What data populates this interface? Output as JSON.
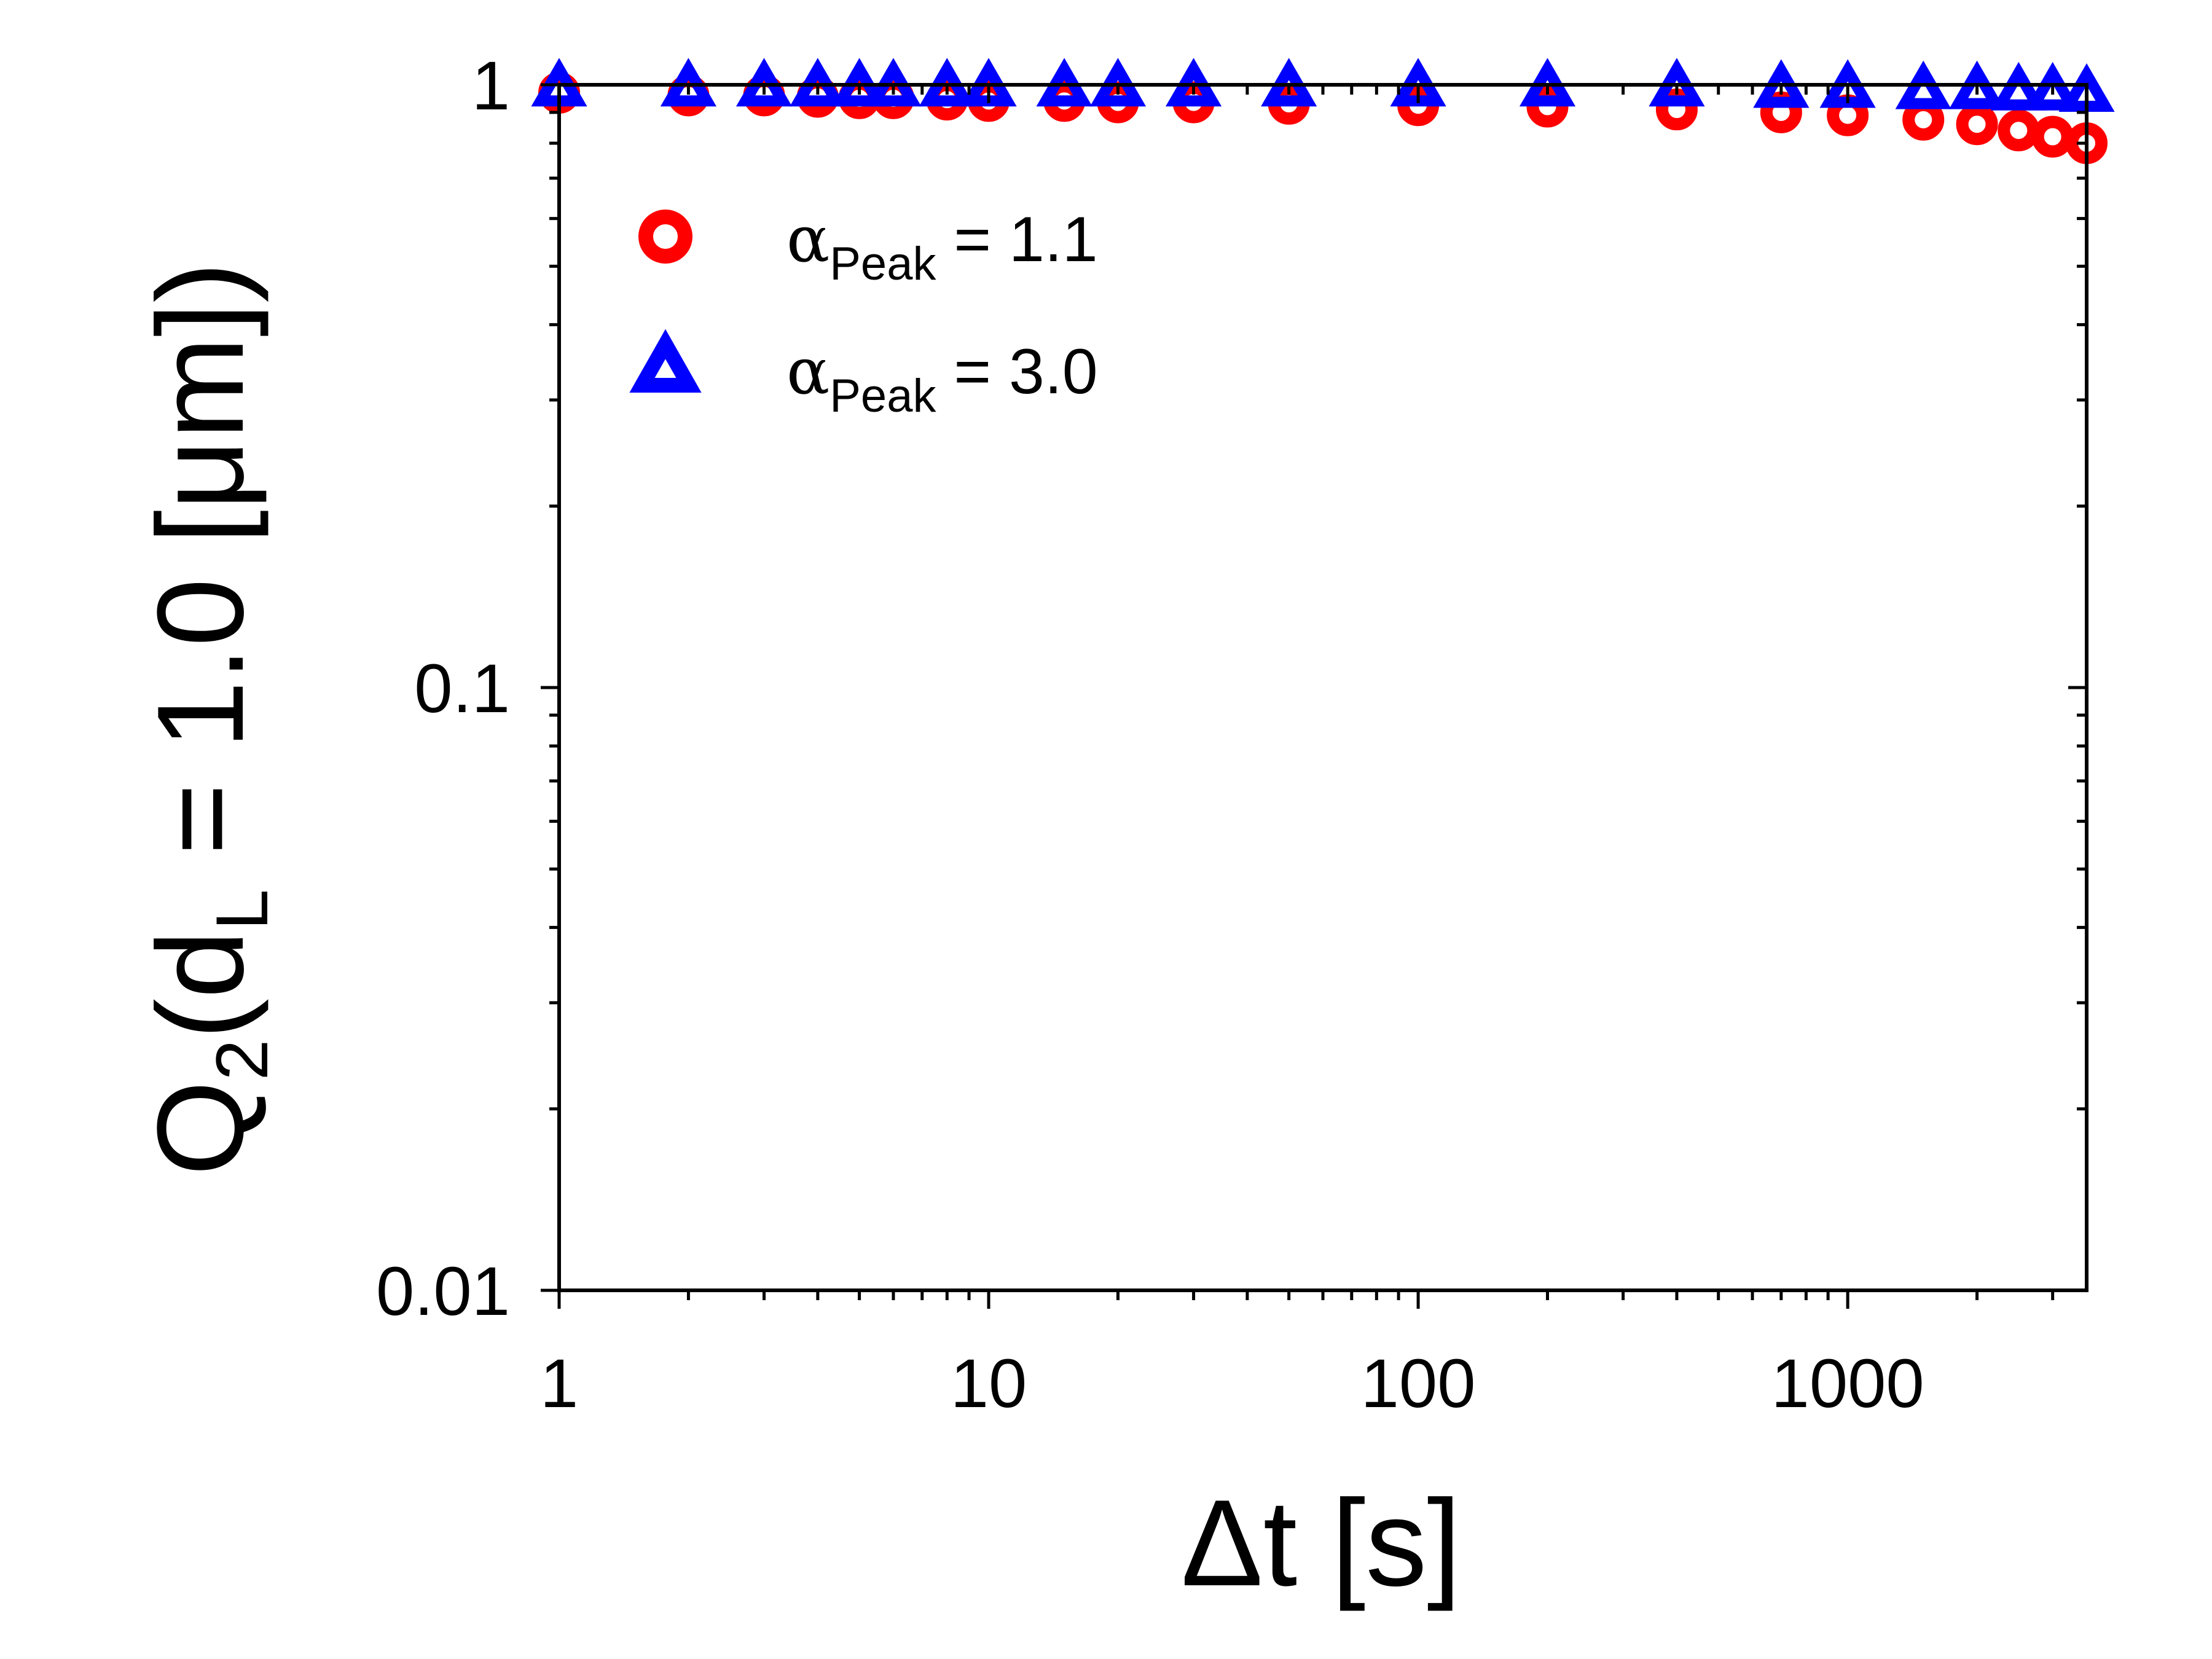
{
  "chart_data": {
    "type": "scatter",
    "x_scale": "log",
    "y_scale": "log",
    "xlim": [
      1,
      3600
    ],
    "ylim": [
      0.01,
      1
    ],
    "x_ticks": [
      1,
      10,
      100,
      1000
    ],
    "x_tick_labels": [
      "1",
      "10",
      "100",
      "1000"
    ],
    "y_ticks": [
      0.01,
      0.1,
      1
    ],
    "y_tick_labels": [
      "0.01",
      "0.1",
      "1"
    ],
    "xlabel": "Δt [s]",
    "ylabel": "Q2(dL = 1.0 [μm])",
    "legend_position": "top-left",
    "grid": false,
    "series": [
      {
        "name": "αPeak = 1.1",
        "marker": "circle",
        "color": "#ff0000",
        "x": [
          1,
          2,
          3,
          4,
          5,
          6,
          8,
          10,
          15,
          20,
          30,
          50,
          100,
          200,
          400,
          700,
          1000,
          1500,
          2000,
          2500,
          3000,
          3600
        ],
        "y": [
          0.97,
          0.96,
          0.96,
          0.955,
          0.95,
          0.95,
          0.945,
          0.94,
          0.94,
          0.935,
          0.935,
          0.93,
          0.925,
          0.92,
          0.91,
          0.9,
          0.89,
          0.875,
          0.86,
          0.84,
          0.82,
          0.8
        ]
      },
      {
        "name": "αPeak = 3.0",
        "marker": "triangle",
        "color": "#0000ff",
        "x": [
          1,
          2,
          3,
          4,
          5,
          6,
          8,
          10,
          15,
          20,
          30,
          50,
          100,
          200,
          400,
          700,
          1000,
          1500,
          2000,
          2500,
          3000,
          3600
        ],
        "y": [
          0.99,
          0.99,
          0.99,
          0.99,
          0.99,
          0.99,
          0.99,
          0.99,
          0.99,
          0.99,
          0.99,
          0.99,
          0.99,
          0.99,
          0.99,
          0.985,
          0.985,
          0.98,
          0.98,
          0.975,
          0.975,
          0.97
        ]
      }
    ],
    "legend_entries": [
      {
        "symbol": "α",
        "subscript": "Peak",
        "rest": " = 1.1"
      },
      {
        "symbol": "α",
        "subscript": "Peak",
        "rest": " = 3.0"
      }
    ],
    "xlabel_text": "Δt [s]",
    "ylabel_main": "Q",
    "ylabel_sub1": "2",
    "ylabel_mid": "(d",
    "ylabel_sub2": "L",
    "ylabel_end": " = 1.0 [μm])"
  }
}
